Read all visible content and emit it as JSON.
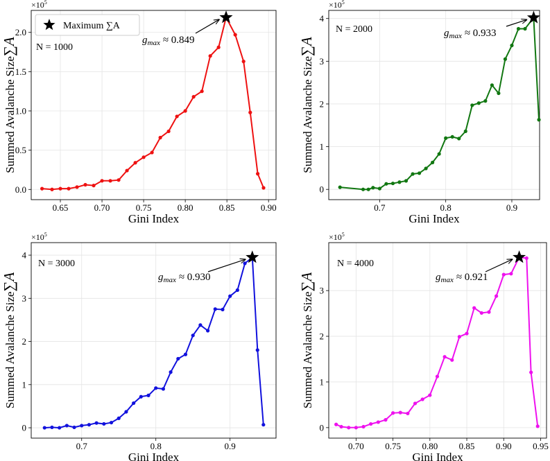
{
  "chart_data": [
    {
      "type": "line",
      "color": "#ee1111",
      "text": "N = 1000",
      "xlabel": "Gini Index",
      "ylabel": "Summed Avalanche Size",
      "ylabel_symbol": "∑A",
      "y_multiplier": "×10",
      "y_multiplier_exp": "5",
      "legend": "Maximum ∑A",
      "annotation": {
        "var": "g",
        "sub": "max",
        "text": "≈ 0.849"
      },
      "x": [
        0.628,
        0.64,
        0.65,
        0.66,
        0.67,
        0.68,
        0.69,
        0.7,
        0.71,
        0.72,
        0.73,
        0.74,
        0.75,
        0.76,
        0.77,
        0.78,
        0.79,
        0.8,
        0.81,
        0.82,
        0.83,
        0.84,
        0.849,
        0.86,
        0.87,
        0.878,
        0.887,
        0.894
      ],
      "values": [
        0.01,
        0.0,
        0.01,
        0.01,
        0.03,
        0.06,
        0.05,
        0.11,
        0.11,
        0.12,
        0.24,
        0.34,
        0.41,
        0.47,
        0.66,
        0.74,
        0.93,
        1.0,
        1.18,
        1.25,
        1.7,
        1.81,
        2.19,
        1.97,
        1.63,
        0.98,
        0.2,
        0.02
      ],
      "xlim": [
        0.615,
        0.909
      ],
      "ylim": [
        -0.13,
        2.28
      ],
      "xticks": [
        0.65,
        {
          "value": 0.7,
          "label": "0.70"
        },
        0.75,
        {
          "value": 0.8,
          "label": "0.80"
        },
        0.85,
        {
          "value": 0.9,
          "label": "0.90"
        }
      ],
      "yticks": [
        {
          "value": 0,
          "label": "0.0"
        },
        0.5,
        {
          "value": 1,
          "label": "1.0"
        },
        1.5,
        {
          "value": 2,
          "label": "2.0"
        }
      ],
      "grid": true
    },
    {
      "type": "line",
      "color": "#117711",
      "text": "N = 2000",
      "xlabel": "Gini Index",
      "ylabel": "Summed Avalanche Size",
      "ylabel_symbol": "∑A",
      "y_multiplier": "×10",
      "y_multiplier_exp": "5",
      "annotation": {
        "var": "g",
        "sub": "max",
        "text": "≈ 0.933"
      },
      "x": [
        0.64,
        0.675,
        0.683,
        0.69,
        0.7,
        0.71,
        0.72,
        0.73,
        0.74,
        0.75,
        0.76,
        0.77,
        0.78,
        0.79,
        0.8,
        0.81,
        0.82,
        0.83,
        0.84,
        0.85,
        0.86,
        0.87,
        0.88,
        0.89,
        0.9,
        0.91,
        0.92,
        0.933,
        0.941
      ],
      "values": [
        0.05,
        0.0,
        0.0,
        0.04,
        0.02,
        0.13,
        0.14,
        0.17,
        0.2,
        0.36,
        0.38,
        0.49,
        0.63,
        0.83,
        1.2,
        1.23,
        1.19,
        1.36,
        1.97,
        2.02,
        2.07,
        2.44,
        2.25,
        3.05,
        3.37,
        3.76,
        3.76,
        4.02,
        1.63
      ],
      "xlim": [
        0.623,
        0.942
      ],
      "ylim": [
        -0.24,
        4.19
      ],
      "xticks": [
        0.7,
        0.8,
        0.9
      ],
      "yticks": [
        0,
        1,
        2,
        3,
        4
      ],
      "grid": true
    },
    {
      "type": "line",
      "color": "#1111dd",
      "text": "N = 3000",
      "xlabel": "Gini Index",
      "ylabel": "Summed Avalanche Size",
      "ylabel_symbol": "∑A",
      "y_multiplier": "×10",
      "y_multiplier_exp": "5",
      "annotation": {
        "var": "g",
        "sub": "max",
        "text": "≈ 0.930"
      },
      "x": [
        0.65,
        0.66,
        0.67,
        0.68,
        0.69,
        0.7,
        0.71,
        0.72,
        0.73,
        0.74,
        0.75,
        0.76,
        0.77,
        0.78,
        0.79,
        0.8,
        0.81,
        0.82,
        0.83,
        0.84,
        0.85,
        0.86,
        0.87,
        0.88,
        0.89,
        0.9,
        0.91,
        0.92,
        0.93,
        0.937,
        0.945
      ],
      "values": [
        0.0,
        0.01,
        0.0,
        0.05,
        0.01,
        0.05,
        0.07,
        0.11,
        0.09,
        0.12,
        0.22,
        0.37,
        0.57,
        0.72,
        0.75,
        0.92,
        0.9,
        1.29,
        1.6,
        1.7,
        2.14,
        2.38,
        2.25,
        2.75,
        2.74,
        3.05,
        3.19,
        3.81,
        3.95,
        1.8,
        0.07
      ],
      "xlim": [
        0.632,
        0.962
      ],
      "ylim": [
        -0.24,
        4.29
      ],
      "xticks": [
        0.7,
        0.8,
        0.9
      ],
      "yticks": [
        0,
        1,
        2,
        3,
        4
      ],
      "grid": true
    },
    {
      "type": "line",
      "color": "#ee11ee",
      "text": "N = 4000",
      "xlabel": "Gini Index",
      "ylabel": "Summed Avalanche Size",
      "ylabel_symbol": "∑A",
      "y_multiplier": "×10",
      "y_multiplier_exp": "5",
      "annotation": {
        "var": "g",
        "sub": "max",
        "text": "≈ 0.921"
      },
      "x": [
        0.673,
        0.68,
        0.69,
        0.7,
        0.71,
        0.72,
        0.73,
        0.74,
        0.75,
        0.76,
        0.77,
        0.78,
        0.79,
        0.8,
        0.81,
        0.82,
        0.83,
        0.84,
        0.85,
        0.86,
        0.87,
        0.88,
        0.89,
        0.9,
        0.91,
        0.921,
        0.931,
        0.937,
        0.946
      ],
      "values": [
        0.07,
        0.02,
        0.0,
        0.0,
        0.02,
        0.08,
        0.12,
        0.17,
        0.32,
        0.33,
        0.31,
        0.53,
        0.62,
        0.71,
        1.12,
        1.55,
        1.48,
        1.99,
        2.06,
        2.62,
        2.51,
        2.53,
        2.88,
        3.35,
        3.37,
        3.73,
        3.71,
        1.21,
        0.03
      ],
      "xlim": [
        0.663,
        0.958
      ],
      "ylim": [
        -0.23,
        4.05
      ],
      "xticks": [
        {
          "value": 0.7,
          "label": "0.70"
        },
        0.75,
        {
          "value": 0.8,
          "label": "0.80"
        },
        0.85,
        {
          "value": 0.9,
          "label": "0.90"
        },
        0.95
      ],
      "yticks": [
        0,
        1,
        2,
        3
      ],
      "grid": true
    }
  ]
}
